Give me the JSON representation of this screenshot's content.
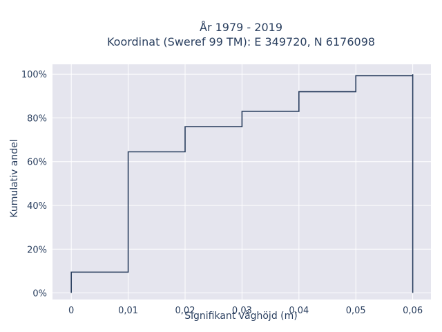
{
  "chart_data": {
    "type": "line",
    "line_shape": "step-cumulative",
    "title_line1": "År 1979 - 2019",
    "title_line2": "Koordinat (Sweref 99 TM): E 349720, N 6176098",
    "xlabel": "Signifikant våghöjd (m)",
    "ylabel": "Kumulativ andel",
    "x_ticks": [
      {
        "value": 0,
        "label": "0"
      },
      {
        "value": 0.01,
        "label": "0,01"
      },
      {
        "value": 0.02,
        "label": "0,02"
      },
      {
        "value": 0.03,
        "label": "0,03"
      },
      {
        "value": 0.04,
        "label": "0,04"
      },
      {
        "value": 0.05,
        "label": "0,05"
      },
      {
        "value": 0.06,
        "label": "0,06"
      }
    ],
    "y_ticks": [
      {
        "value": 0,
        "label": "0%"
      },
      {
        "value": 20,
        "label": "20%"
      },
      {
        "value": 40,
        "label": "40%"
      },
      {
        "value": 60,
        "label": "60%"
      },
      {
        "value": 80,
        "label": "80%"
      },
      {
        "value": 100,
        "label": "100%"
      }
    ],
    "xlim": [
      -0.0033,
      0.0632
    ],
    "ylim": [
      -3,
      104.5
    ],
    "grid": true,
    "x": [
      0,
      0.01,
      0.02,
      0.03,
      0.04,
      0.05,
      0.06
    ],
    "y": [
      9.5,
      64.5,
      76,
      83,
      92,
      99.3,
      100
    ],
    "colors": {
      "background": "#e5e5ee",
      "grid": "#ffffff",
      "line": "#2a3f5f",
      "text": "#2a3f5f"
    }
  }
}
